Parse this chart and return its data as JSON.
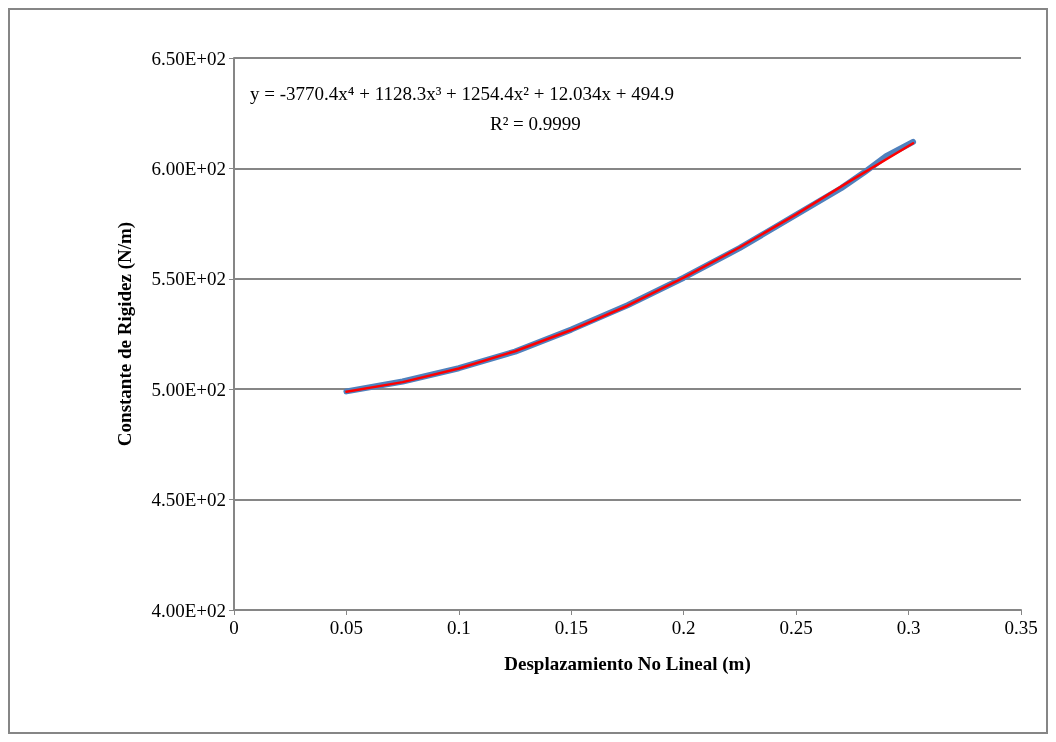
{
  "chart_data": {
    "type": "line",
    "xlabel": "Desplazamiento No Lineal (m)",
    "ylabel": "Constante de Rigidez (N/m)",
    "annotations": [
      "y = -3770.4x⁴ + 1128.3x³ + 1254.4x² + 12.034x + 494.9",
      "R² = 0.9999"
    ],
    "series": [
      {
        "color": "#4f81bd",
        "x": [
          0.05,
          0.075,
          0.1,
          0.125,
          0.15,
          0.175,
          0.2,
          0.225,
          0.25,
          0.27,
          0.28,
          0.29,
          0.302
        ],
        "values": [
          499,
          503.5,
          509.5,
          517,
          527,
          538,
          550.5,
          564,
          579,
          591,
          598,
          605.5,
          612
        ]
      },
      {
        "color": "#ff0000",
        "x": [
          0.05,
          0.075,
          0.1,
          0.125,
          0.15,
          0.175,
          0.2,
          0.225,
          0.25,
          0.275,
          0.302
        ],
        "values": [
          498.8,
          503.2,
          509.4,
          517.2,
          526.8,
          537.8,
          550.5,
          564.3,
          579.2,
          594.9,
          611.4
        ]
      }
    ],
    "xlim": [
      0,
      0.35
    ],
    "xticks": [
      0,
      0.05,
      0.1,
      0.15,
      0.2,
      0.25,
      0.3,
      0.35
    ],
    "ylim": [
      400,
      650
    ],
    "yticks": [
      {
        "value": 400,
        "label": "4.00E+02"
      },
      {
        "value": 450,
        "label": "4.50E+02"
      },
      {
        "value": 500,
        "label": "5.00E+02"
      },
      {
        "value": 550,
        "label": "5.50E+02"
      },
      {
        "value": 600,
        "label": "6.00E+02"
      },
      {
        "value": 650,
        "label": "6.50E+02"
      }
    ],
    "grid": "y",
    "marker": "none",
    "line_style": "solid"
  }
}
